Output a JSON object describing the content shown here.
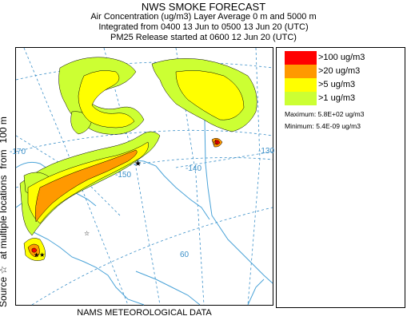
{
  "header": {
    "title": "NWS SMOKE FORECAST",
    "line1": "Air Concentration (ug/m3) Layer Average    0 m and  5000 m",
    "line2": "Integrated from 0400 13 Jun to 0500 13 Jun 20 (UTC)",
    "line3": "PM25 Release started at 0600 12 Jun 20 (UTC)"
  },
  "side_label": {
    "source": "Source ☆",
    "locations": "at multiple locations",
    "from": "from",
    "height": "100 m"
  },
  "footer": "NAMS METEOROLOGICAL DATA",
  "legend": {
    "items": [
      {
        "label": ">100 ug/m3",
        "color": "#ff0000"
      },
      {
        "label": ">20 ug/m3",
        "color": "#ff9900"
      },
      {
        "label": ">5 ug/m3",
        "color": "#ffff00"
      },
      {
        "label": ">1 ug/m3",
        "color": "#ccff33"
      }
    ],
    "maximum": "Maximum: 5.8E+02 ug/m3",
    "minimum": "Minimum: 5.4E-09 ug/m3"
  },
  "map": {
    "graticule_labels": [
      "-170",
      "-150",
      "-140",
      "-130",
      "60"
    ],
    "colors": {
      "coast": "#4aa3d8",
      "grid": "#3a8fc8",
      "contour": "#000000"
    }
  }
}
